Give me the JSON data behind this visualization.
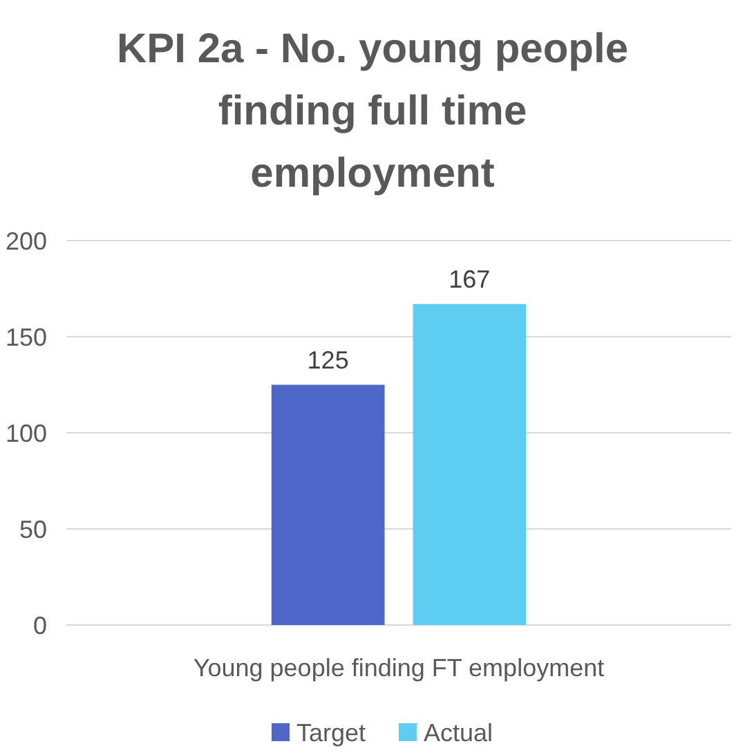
{
  "chart_data": {
    "type": "bar",
    "title": "KPI 2a - No. young people finding full time employment",
    "categories": [
      "Young people finding FT employment"
    ],
    "series": [
      {
        "name": "Target",
        "color": "#4f67c9",
        "values": [
          125
        ]
      },
      {
        "name": "Actual",
        "color": "#5ecdf2",
        "values": [
          167
        ]
      }
    ],
    "ylim": [
      0,
      200
    ],
    "yticks": [
      0,
      50,
      100,
      150,
      200
    ],
    "grid": "y",
    "legend": "bottom",
    "data_labels": true
  }
}
